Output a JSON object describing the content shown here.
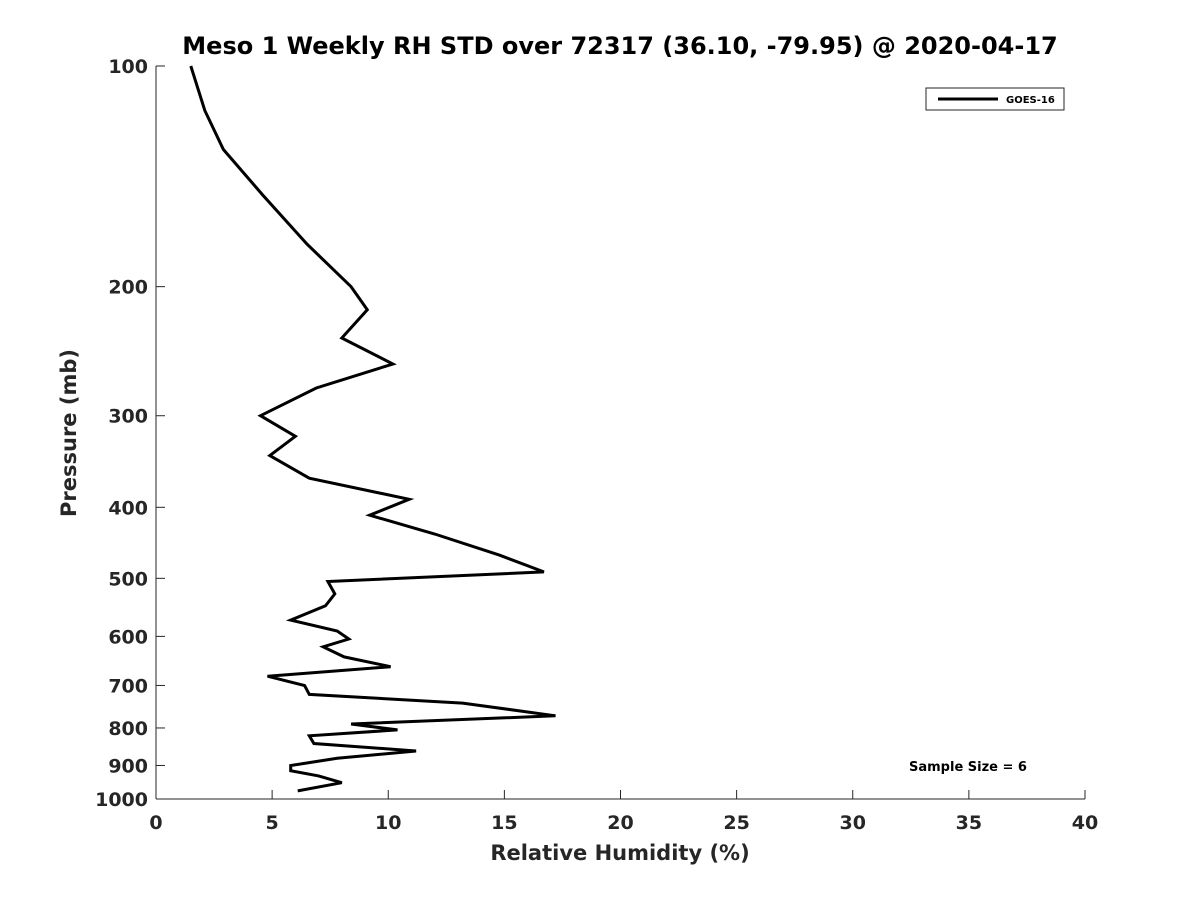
{
  "chart_data": {
    "type": "line",
    "title": "Meso 1 Weekly RH STD over 72317 (36.10, -79.95) @ 2020-04-17",
    "xlabel": "Relative Humidity (%)",
    "ylabel": "Pressure (mb)",
    "xlim": [
      0,
      40
    ],
    "ylim": [
      100,
      1000
    ],
    "y_scale": "log",
    "y_reversed": true,
    "x_ticks": [
      0,
      5,
      10,
      15,
      20,
      25,
      30,
      35,
      40
    ],
    "y_ticks": [
      100,
      200,
      300,
      400,
      500,
      600,
      700,
      800,
      900,
      1000
    ],
    "grid": false,
    "legend_position": "top-right",
    "series": [
      {
        "name": "GOES-16",
        "color": "#000000",
        "x": [
          1.5,
          2.1,
          2.9,
          4.6,
          6.5,
          8.4,
          9.1,
          8.0,
          10.2,
          6.9,
          4.5,
          6.0,
          4.9,
          6.6,
          10.9,
          9.2,
          12.0,
          14.8,
          16.7,
          7.4,
          7.7,
          7.3,
          5.8,
          7.8,
          8.3,
          7.2,
          8.1,
          10.1,
          4.8,
          6.4,
          6.6,
          13.2,
          17.2,
          8.4,
          10.4,
          6.6,
          6.8,
          11.2,
          7.8,
          5.8,
          5.8,
          7.0,
          8.0,
          6.1
        ],
        "y": [
          100,
          115,
          130,
          150,
          175,
          200,
          215,
          235,
          255,
          275,
          300,
          320,
          340,
          365,
          390,
          410,
          435,
          465,
          490,
          505,
          525,
          545,
          570,
          590,
          605,
          620,
          640,
          660,
          680,
          700,
          720,
          740,
          770,
          790,
          805,
          820,
          840,
          860,
          880,
          900,
          915,
          930,
          950,
          975
        ]
      }
    ],
    "annotations": [
      "Sample Size = 6"
    ]
  }
}
